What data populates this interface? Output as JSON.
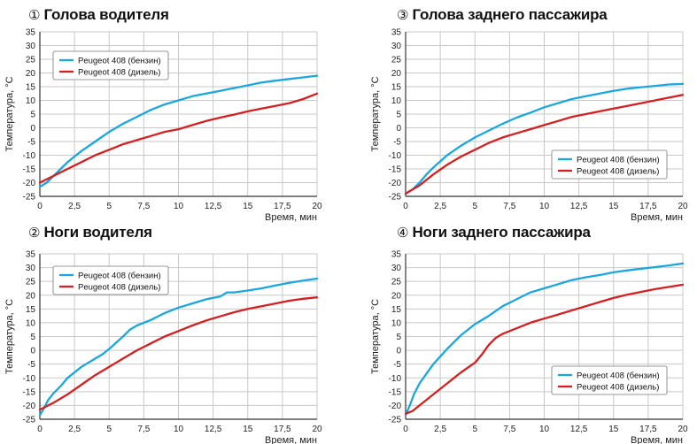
{
  "colors": {
    "petrol": "#1aa7e0",
    "diesel": "#d42020",
    "grid": "#c8c8c8",
    "axis": "#333333"
  },
  "chart_data": [
    {
      "type": "line",
      "number": "①",
      "title": "Голова водителя",
      "xlabel": "Время, мин",
      "ylabel": "Температура, °C",
      "xlim": [
        0,
        20
      ],
      "ylim": [
        -25,
        35
      ],
      "x_ticks": [
        "0",
        "2,5",
        "5",
        "7,5",
        "10",
        "12,5",
        "15",
        "17,5",
        "20"
      ],
      "y_ticks": [
        "-25",
        "-20",
        "-15",
        "-10",
        "-5",
        "0",
        "5",
        "10",
        "15",
        "20",
        "25",
        "30",
        "35"
      ],
      "grid": true,
      "legend_position": "top-left",
      "series": [
        {
          "name": "Peugeot 408 (бензин)",
          "color": "petrol",
          "x": [
            0,
            0.5,
            1,
            1.5,
            2,
            2.5,
            3,
            4,
            5,
            6,
            7,
            8,
            9,
            10,
            11,
            12,
            13,
            14,
            15,
            16,
            17,
            18,
            19,
            20
          ],
          "y": [
            -21.5,
            -20,
            -17.5,
            -15,
            -12.5,
            -10.5,
            -8.5,
            -5,
            -1.5,
            1.5,
            4,
            6.5,
            8.5,
            10,
            11.5,
            12.5,
            13.5,
            14.5,
            15.5,
            16.5,
            17.2,
            17.8,
            18.4,
            19
          ]
        },
        {
          "name": "Peugeot 408 (дизель)",
          "color": "diesel",
          "x": [
            0,
            1,
            2,
            3,
            4,
            5,
            6,
            7,
            8,
            9,
            10,
            11,
            12,
            13,
            14,
            15,
            16,
            17,
            18,
            19,
            20
          ],
          "y": [
            -20,
            -17.5,
            -15,
            -12.5,
            -10,
            -8,
            -6,
            -4.5,
            -3,
            -1.5,
            -0.5,
            1,
            2.5,
            3.7,
            4.8,
            6,
            7,
            8,
            9,
            10.5,
            12.5
          ]
        }
      ]
    },
    {
      "type": "line",
      "number": "②",
      "title": "Ноги водителя",
      "xlabel": "Время, мин",
      "ylabel": "Температура, °C",
      "xlim": [
        0,
        20
      ],
      "ylim": [
        -25,
        35
      ],
      "x_ticks": [
        "0",
        "2,5",
        "5",
        "7,5",
        "10",
        "12,5",
        "15",
        "17,5",
        "20"
      ],
      "y_ticks": [
        "-25",
        "-20",
        "-15",
        "-10",
        "-5",
        "0",
        "5",
        "10",
        "15",
        "20",
        "25",
        "30",
        "35"
      ],
      "grid": true,
      "legend_position": "top-left",
      "series": [
        {
          "name": "Peugeot 408 (бензин)",
          "color": "petrol",
          "x": [
            0,
            0.3,
            0.6,
            1,
            1.5,
            2,
            3,
            4,
            4.5,
            5,
            6,
            6.5,
            7,
            8,
            9,
            10,
            11,
            12,
            13,
            13.5,
            14,
            15,
            16,
            16.5,
            17,
            18,
            19,
            20
          ],
          "y": [
            -23.5,
            -21,
            -18,
            -15.5,
            -13,
            -10,
            -6,
            -3,
            -1.5,
            0.5,
            5,
            7.5,
            9,
            11,
            13.5,
            15.5,
            17,
            18.5,
            19.5,
            21,
            21,
            21.7,
            22.5,
            23,
            23.5,
            24.5,
            25.3,
            26
          ]
        },
        {
          "name": "Peugeot 408 (дизель)",
          "color": "diesel",
          "x": [
            0,
            1,
            2,
            3,
            4,
            5,
            6,
            7,
            8,
            9,
            10,
            11,
            12,
            13,
            14,
            15,
            16,
            17,
            18,
            19,
            20
          ],
          "y": [
            -21.5,
            -19,
            -16,
            -12.5,
            -9,
            -6,
            -3,
            0,
            2.5,
            5,
            7,
            9,
            10.8,
            12.3,
            13.8,
            15,
            16,
            17,
            18,
            18.7,
            19.2
          ]
        }
      ]
    },
    {
      "type": "line",
      "number": "③",
      "title": "Голова заднего пассажира",
      "xlabel": "Время, мин",
      "ylabel": "Температура, °C",
      "xlim": [
        0,
        20
      ],
      "ylim": [
        -25,
        35
      ],
      "x_ticks": [
        "0",
        "2,5",
        "5",
        "7,5",
        "10",
        "12,5",
        "15",
        "17,5",
        "20"
      ],
      "y_ticks": [
        "-25",
        "-20",
        "-15",
        "-10",
        "-5",
        "0",
        "5",
        "10",
        "15",
        "20",
        "25",
        "30",
        "35"
      ],
      "grid": true,
      "legend_position": "bottom-right",
      "series": [
        {
          "name": "Peugeot 408 (бензин)",
          "color": "petrol",
          "x": [
            0,
            0.5,
            1,
            1.5,
            2,
            3,
            4,
            5,
            6,
            7,
            8,
            9,
            10,
            11,
            12,
            13,
            14,
            15,
            16,
            17,
            18,
            19,
            20
          ],
          "y": [
            -24,
            -22.5,
            -20,
            -17,
            -14.5,
            -10,
            -6.5,
            -3.5,
            -1,
            1.5,
            3.7,
            5.5,
            7.5,
            9,
            10.5,
            11.5,
            12.5,
            13.5,
            14.3,
            14.8,
            15.3,
            15.8,
            16
          ]
        },
        {
          "name": "Peugeot 408 (дизель)",
          "color": "diesel",
          "x": [
            0,
            1,
            2,
            3,
            4,
            5,
            6,
            7,
            8,
            9,
            10,
            11,
            12,
            13,
            14,
            15,
            16,
            17,
            18,
            19,
            20
          ],
          "y": [
            -24,
            -21,
            -17,
            -13.5,
            -10.5,
            -8,
            -5.5,
            -3.5,
            -2,
            -0.5,
            1,
            2.5,
            4,
            5,
            6,
            7,
            8,
            9,
            10,
            11,
            12
          ]
        }
      ]
    },
    {
      "type": "line",
      "number": "④",
      "title": "Ноги заднего пассажира",
      "xlabel": "Время, мин",
      "ylabel": "Температура, °C",
      "xlim": [
        0,
        20
      ],
      "ylim": [
        -25,
        35
      ],
      "x_ticks": [
        "0",
        "2,5",
        "5",
        "7,5",
        "10",
        "12,5",
        "15",
        "17,5",
        "20"
      ],
      "y_ticks": [
        "-25",
        "-20",
        "-15",
        "-10",
        "-5",
        "0",
        "5",
        "10",
        "15",
        "20",
        "25",
        "30",
        "35"
      ],
      "grid": true,
      "legend_position": "bottom-right",
      "series": [
        {
          "name": "Peugeot 408 (бензин)",
          "color": "petrol",
          "x": [
            0,
            0.3,
            0.6,
            1,
            1.5,
            2,
            3,
            4,
            5,
            6,
            7,
            8,
            9,
            10,
            11,
            12,
            13,
            14,
            15,
            16,
            17,
            18,
            19,
            20
          ],
          "y": [
            -23.5,
            -20,
            -16,
            -12,
            -8.5,
            -5,
            0.5,
            5.5,
            9.5,
            12.5,
            16,
            18.5,
            21,
            22.5,
            24,
            25.5,
            26.5,
            27.3,
            28.3,
            29,
            29.6,
            30.2,
            30.8,
            31.5
          ]
        },
        {
          "name": "Peugeot 408 (дизель)",
          "color": "diesel",
          "x": [
            0,
            0.5,
            1,
            2,
            3,
            4,
            5,
            5.5,
            6,
            6.5,
            7,
            8,
            9,
            10,
            11,
            12,
            13,
            14,
            15,
            16,
            17,
            18,
            19,
            20
          ],
          "y": [
            -23,
            -22,
            -20,
            -16,
            -12,
            -8,
            -4.5,
            -1.5,
            2,
            4.5,
            6,
            8,
            10,
            11.5,
            13,
            14.5,
            16,
            17.5,
            19,
            20.2,
            21.2,
            22.2,
            23,
            23.8
          ]
        }
      ]
    }
  ]
}
